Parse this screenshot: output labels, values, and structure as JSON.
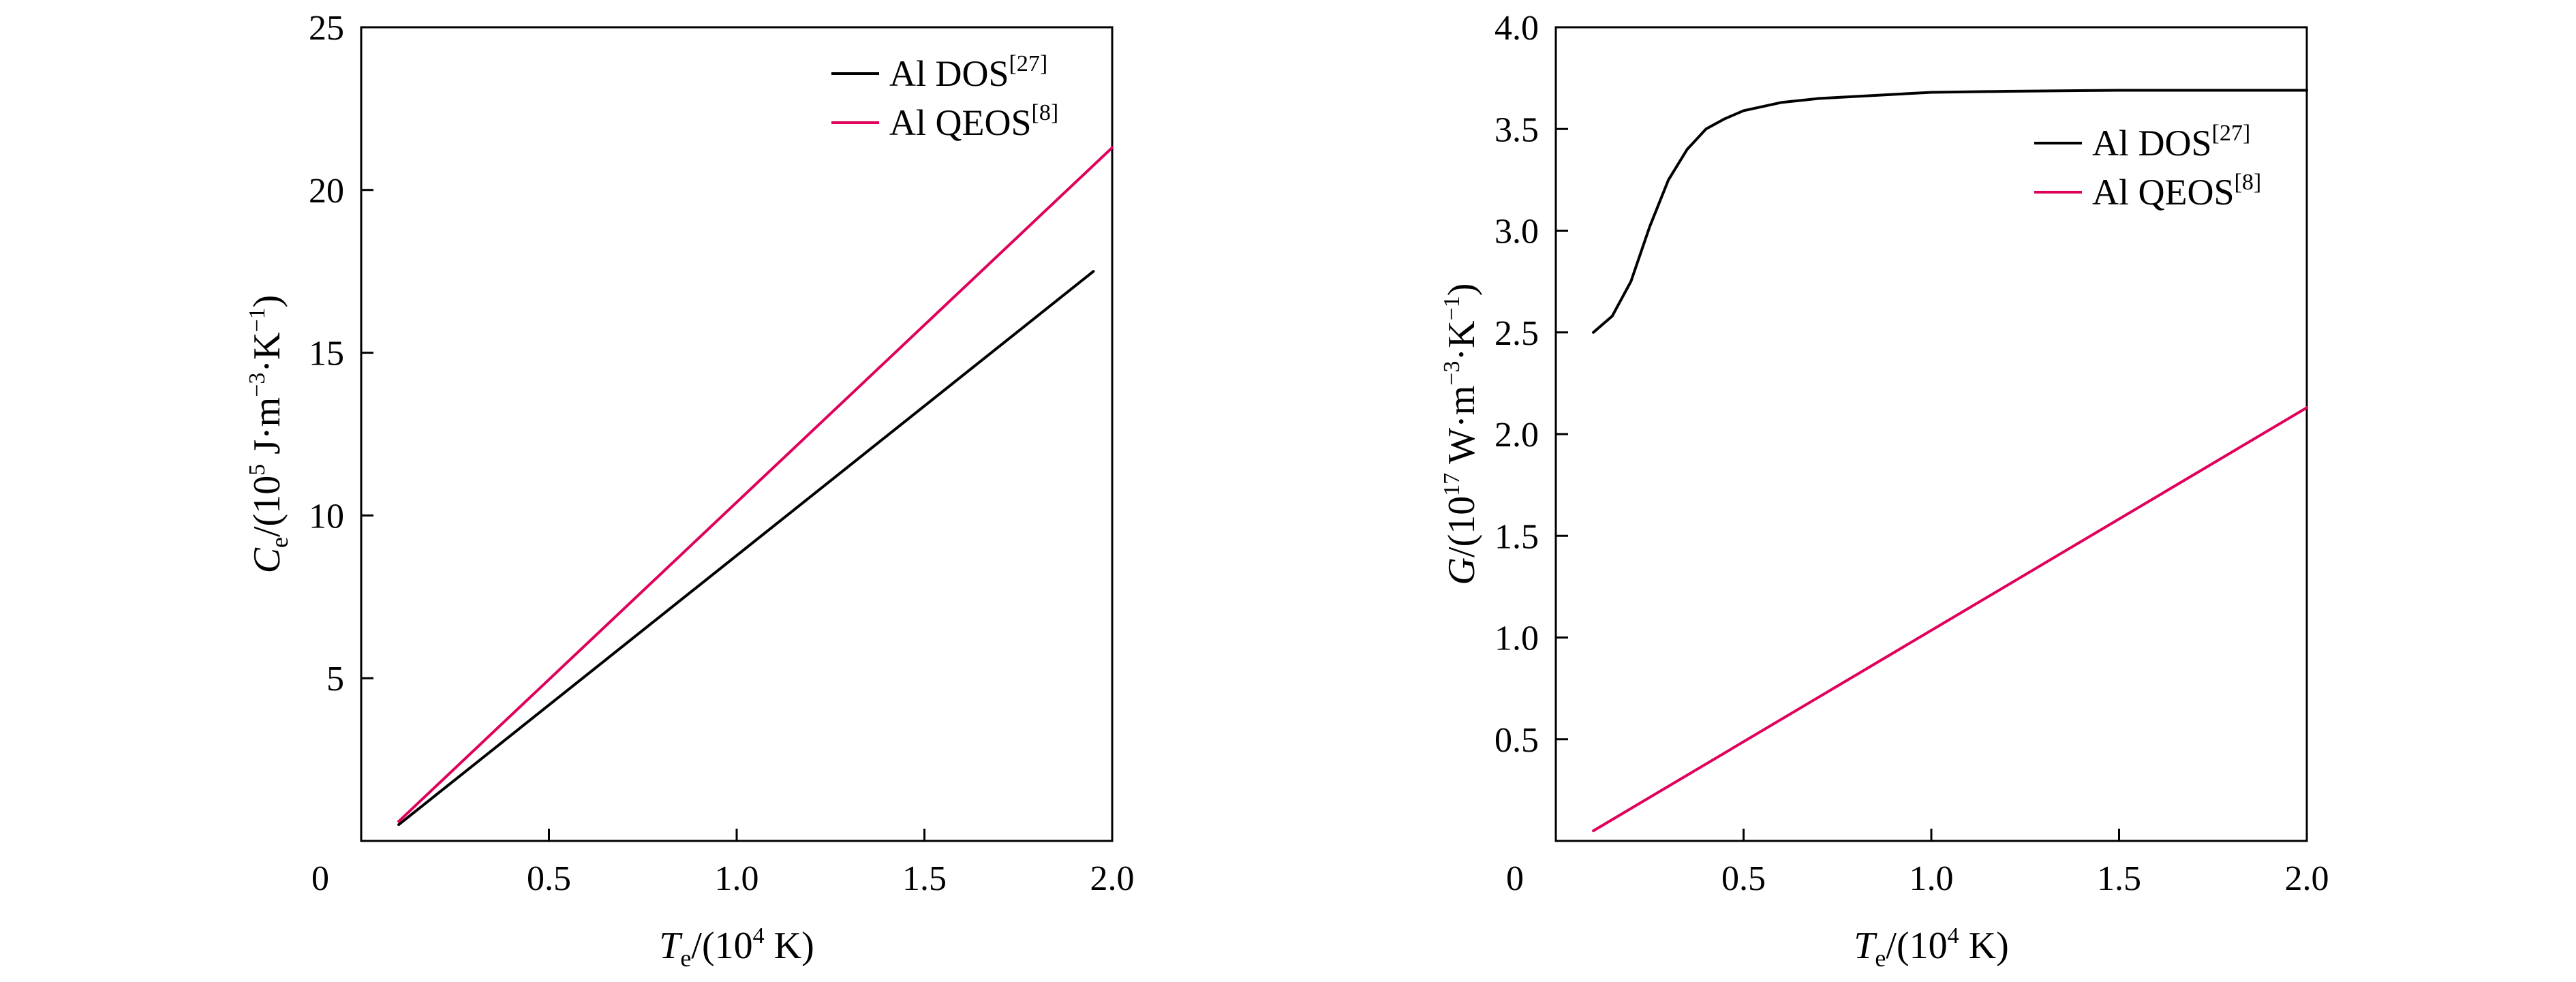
{
  "chart_data": [
    {
      "type": "line",
      "xlabel": {
        "italic": "T",
        "sub": "e",
        "pre": "/(10",
        "sup": "4",
        "post": " K)"
      },
      "ylabel": {
        "italic": "C",
        "sub": "e",
        "pre": "/(10",
        "sup": "5",
        "post": " J·m",
        "sup2": "−3",
        "mid": "·K",
        "sup3": "−1",
        "end": ")"
      },
      "xlim": [
        0,
        2.0
      ],
      "ylim": [
        0,
        25
      ],
      "xticks": [
        0.5,
        1.0,
        1.5,
        2.0
      ],
      "xtick_labels": [
        "0.5",
        "1.0",
        "1.5",
        "2.0"
      ],
      "yticks": [
        5,
        10,
        15,
        20,
        25
      ],
      "ytick_labels": [
        "5",
        "10",
        "15",
        "20",
        "25"
      ],
      "origin_label": "0",
      "legend_position": "top-right",
      "series": [
        {
          "name": "Al DOS",
          "ref": "[27]",
          "color": "#000000",
          "x": [
            0.1,
            1.95
          ],
          "y": [
            0.5,
            17.5
          ]
        },
        {
          "name": "Al QEOS",
          "ref": "[8]",
          "color": "#e0005a",
          "x": [
            0.1,
            2.0
          ],
          "y": [
            0.6,
            21.3
          ]
        }
      ]
    },
    {
      "type": "line",
      "xlabel": {
        "italic": "T",
        "sub": "e",
        "pre": "/(10",
        "sup": "4",
        "post": " K)"
      },
      "ylabel": {
        "italic": "G",
        "sub": "",
        "pre": "/(10",
        "sup": "17",
        "post": " W·m",
        "sup2": "−3",
        "mid": "·K",
        "sup3": "−1",
        "end": ")"
      },
      "xlim": [
        0,
        2.0
      ],
      "ylim": [
        0,
        4.0
      ],
      "xticks": [
        0.5,
        1.0,
        1.5,
        2.0
      ],
      "xtick_labels": [
        "0.5",
        "1.0",
        "1.5",
        "2.0"
      ],
      "yticks": [
        0.5,
        1.0,
        1.5,
        2.0,
        2.5,
        3.0,
        3.5,
        4.0
      ],
      "ytick_labels": [
        "0.5",
        "1.0",
        "1.5",
        "2.0",
        "2.5",
        "3.0",
        "3.5",
        "4.0"
      ],
      "origin_label": "0",
      "legend_position": "right",
      "series": [
        {
          "name": "Al DOS",
          "ref": "[27]",
          "color": "#000000",
          "x": [
            0.1,
            0.15,
            0.2,
            0.25,
            0.3,
            0.35,
            0.4,
            0.45,
            0.5,
            0.6,
            0.7,
            0.8,
            1.0,
            1.2,
            1.5,
            2.0
          ],
          "y": [
            2.5,
            2.58,
            2.75,
            3.02,
            3.25,
            3.4,
            3.5,
            3.55,
            3.59,
            3.63,
            3.65,
            3.66,
            3.68,
            3.685,
            3.69,
            3.69
          ]
        },
        {
          "name": "Al QEOS",
          "ref": "[8]",
          "color": "#e0005a",
          "x": [
            0.1,
            2.0
          ],
          "y": [
            0.05,
            2.13
          ]
        }
      ]
    }
  ]
}
